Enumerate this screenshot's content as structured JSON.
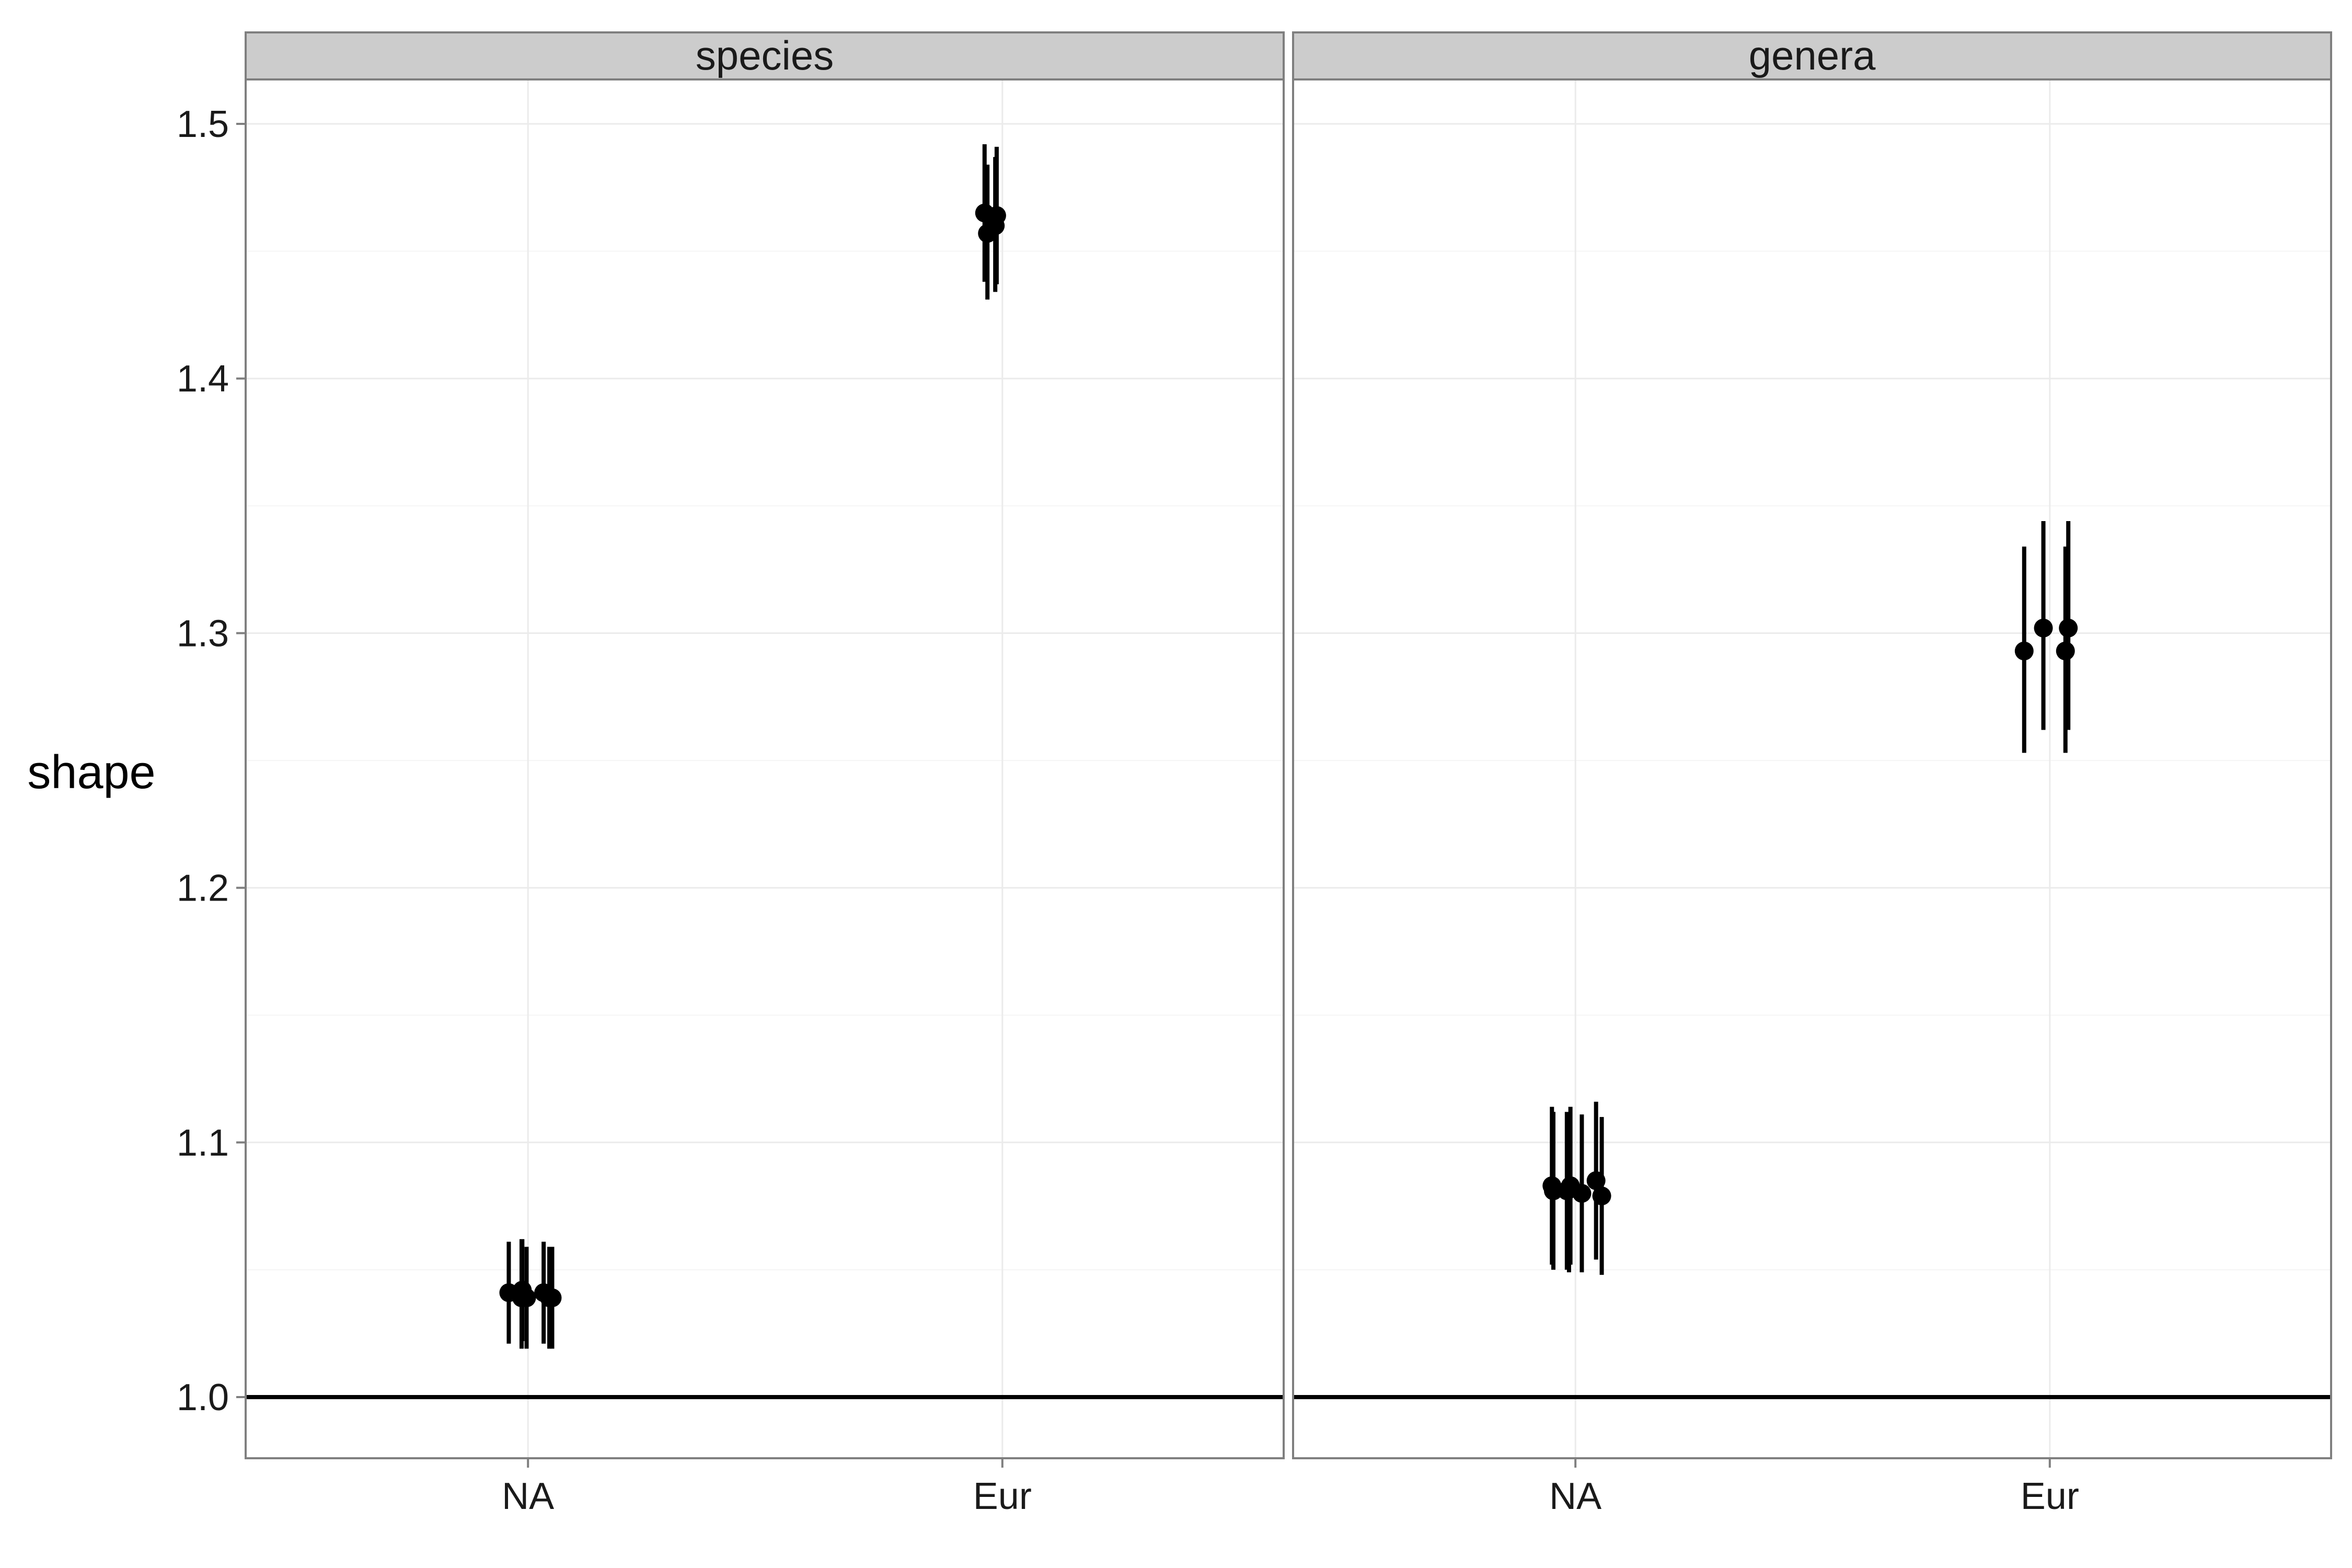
{
  "chart_data": {
    "type": "scatter",
    "subtype": "point-range (point estimate with interval), faceted",
    "ylabel": "shape",
    "xlabel": "",
    "ylim": [
      0.975,
      1.52
    ],
    "y_ticks": [
      1.0,
      1.1,
      1.2,
      1.3,
      1.4,
      1.5
    ],
    "y_tick_labels": [
      "1.0",
      "1.1",
      "1.2",
      "1.3",
      "1.4",
      "1.5"
    ],
    "categories": [
      "NA",
      "Eur"
    ],
    "reference_line": 1.0,
    "grid": true,
    "legend": "none",
    "colors": {
      "marks": "#000000",
      "strip_background": "#cccccc",
      "panel_border": "#7f7f7f",
      "grid": "#ebebeb"
    },
    "panels": [
      {
        "strip_label": "species",
        "points": [
          {
            "category": "NA",
            "offset": -0.135,
            "y": 1.041,
            "low": 1.021,
            "high": 1.061
          },
          {
            "category": "NA",
            "offset": -0.045,
            "y": 1.039,
            "low": 1.019,
            "high": 1.062
          },
          {
            "category": "NA",
            "offset": -0.04,
            "y": 1.042,
            "low": 1.022,
            "high": 1.062
          },
          {
            "category": "NA",
            "offset": -0.01,
            "y": 1.039,
            "low": 1.019,
            "high": 1.059
          },
          {
            "category": "NA",
            "offset": 0.11,
            "y": 1.041,
            "low": 1.021,
            "high": 1.061
          },
          {
            "category": "NA",
            "offset": 0.15,
            "y": 1.039,
            "low": 1.019,
            "high": 1.059
          },
          {
            "category": "NA",
            "offset": 0.17,
            "y": 1.039,
            "low": 1.019,
            "high": 1.059
          },
          {
            "category": "Eur",
            "offset": -0.125,
            "y": 1.465,
            "low": 1.438,
            "high": 1.492
          },
          {
            "category": "Eur",
            "offset": -0.105,
            "y": 1.457,
            "low": 1.431,
            "high": 1.484
          },
          {
            "category": "Eur",
            "offset": -0.05,
            "y": 1.46,
            "low": 1.434,
            "high": 1.487
          },
          {
            "category": "Eur",
            "offset": -0.04,
            "y": 1.464,
            "low": 1.437,
            "high": 1.491
          }
        ]
      },
      {
        "strip_label": "genera",
        "points": [
          {
            "category": "NA",
            "offset": -0.165,
            "y": 1.083,
            "low": 1.052,
            "high": 1.114
          },
          {
            "category": "NA",
            "offset": -0.155,
            "y": 1.081,
            "low": 1.05,
            "high": 1.112
          },
          {
            "category": "NA",
            "offset": -0.06,
            "y": 1.081,
            "low": 1.05,
            "high": 1.112
          },
          {
            "category": "NA",
            "offset": -0.045,
            "y": 1.082,
            "low": 1.049,
            "high": 1.111
          },
          {
            "category": "NA",
            "offset": -0.035,
            "y": 1.083,
            "low": 1.052,
            "high": 1.114
          },
          {
            "category": "NA",
            "offset": 0.045,
            "y": 1.08,
            "low": 1.049,
            "high": 1.111
          },
          {
            "category": "NA",
            "offset": 0.145,
            "y": 1.085,
            "low": 1.054,
            "high": 1.116
          },
          {
            "category": "NA",
            "offset": 0.185,
            "y": 1.079,
            "low": 1.048,
            "high": 1.11
          },
          {
            "category": "Eur",
            "offset": -0.18,
            "y": 1.293,
            "low": 1.253,
            "high": 1.334
          },
          {
            "category": "Eur",
            "offset": -0.045,
            "y": 1.302,
            "low": 1.262,
            "high": 1.344
          },
          {
            "category": "Eur",
            "offset": 0.11,
            "y": 1.293,
            "low": 1.253,
            "high": 1.334
          },
          {
            "category": "Eur",
            "offset": 0.13,
            "y": 1.302,
            "low": 1.262,
            "high": 1.344
          }
        ]
      }
    ]
  }
}
